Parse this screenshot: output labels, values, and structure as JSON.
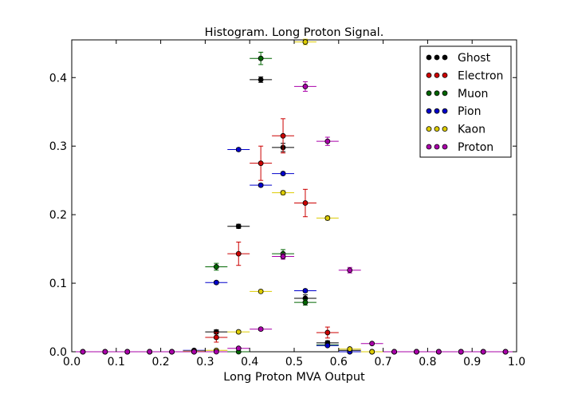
{
  "chart_data": {
    "type": "scatter",
    "title": "Histogram. Long Proton Signal.",
    "xlabel": "Long Proton MVA Output",
    "ylabel": "",
    "xlim": [
      0.0,
      1.0
    ],
    "ylim": [
      0.0,
      0.455
    ],
    "grid": false,
    "legend_position": "top-right",
    "x_ticks": [
      "0.0",
      "0.1",
      "0.2",
      "0.3",
      "0.4",
      "0.5",
      "0.6",
      "0.7",
      "0.8",
      "0.9",
      "1.0"
    ],
    "y_ticks": [
      "0.0",
      "0.1",
      "0.2",
      "0.3",
      "0.4"
    ],
    "x_bins": [
      0.025,
      0.075,
      0.125,
      0.175,
      0.225,
      0.275,
      0.325,
      0.375,
      0.425,
      0.475,
      0.525,
      0.575,
      0.625,
      0.675,
      0.725,
      0.775,
      0.825,
      0.875,
      0.925,
      0.975
    ],
    "series": [
      {
        "name": "Ghost",
        "color": "#000000",
        "values": [
          0,
          0,
          0,
          0,
          0,
          0,
          0.029,
          0.183,
          0.397,
          0.298,
          0.078,
          0.013,
          0.002,
          0,
          0,
          0,
          0,
          0,
          0,
          0
        ],
        "errors": [
          0,
          0,
          0,
          0,
          0,
          0,
          0.003,
          0.003,
          0.004,
          0.006,
          0.005,
          0.003,
          0.001,
          0,
          0,
          0,
          0,
          0,
          0,
          0
        ]
      },
      {
        "name": "Electron",
        "color": "#cc0000",
        "values": [
          0,
          0,
          0,
          0,
          0,
          0,
          0.021,
          0.143,
          0.275,
          0.315,
          0.217,
          0.028,
          0,
          0,
          0,
          0,
          0,
          0,
          0,
          0
        ],
        "errors": [
          0,
          0,
          0,
          0,
          0,
          0,
          0.007,
          0.017,
          0.025,
          0.025,
          0.02,
          0.008,
          0,
          0,
          0,
          0,
          0,
          0,
          0,
          0
        ]
      },
      {
        "name": "Muon",
        "color": "#006600",
        "values": [
          0,
          0,
          0,
          0,
          0,
          0,
          0.124,
          0,
          0.428,
          0.143,
          0.072,
          0.01,
          0,
          0,
          0,
          0,
          0,
          0,
          0,
          0
        ],
        "errors": [
          0,
          0,
          0,
          0,
          0,
          0,
          0.005,
          0,
          0.009,
          0.006,
          0.004,
          0.002,
          0,
          0,
          0,
          0,
          0,
          0,
          0,
          0
        ]
      },
      {
        "name": "Pion",
        "color": "#0000cc",
        "values": [
          0,
          0,
          0,
          0,
          0,
          0.002,
          0.101,
          0.295,
          0.243,
          0.26,
          0.089,
          0.009,
          0,
          0,
          0,
          0,
          0,
          0,
          0,
          0
        ],
        "errors": [
          0,
          0,
          0,
          0,
          0,
          0.001,
          0.002,
          0.002,
          0.002,
          0.002,
          0.002,
          0.001,
          0,
          0,
          0,
          0,
          0,
          0,
          0,
          0
        ]
      },
      {
        "name": "Kaon",
        "color": "#ddcc00",
        "values": [
          0,
          0,
          0,
          0,
          0,
          0.001,
          0.002,
          0.029,
          0.088,
          0.232,
          0.452,
          0.195,
          0.004,
          0,
          0,
          0,
          0,
          0,
          0,
          0
        ],
        "errors": [
          0,
          0,
          0,
          0,
          0,
          0,
          0.001,
          0.002,
          0.002,
          0.003,
          0.004,
          0.003,
          0.001,
          0,
          0,
          0,
          0,
          0,
          0,
          0
        ]
      },
      {
        "name": "Proton",
        "color": "#aa00aa",
        "values": [
          0,
          0,
          0,
          0,
          0,
          0,
          0,
          0.005,
          0.033,
          0.139,
          0.387,
          0.307,
          0.119,
          0.012,
          0,
          0,
          0,
          0,
          0,
          0
        ],
        "errors": [
          0,
          0,
          0,
          0,
          0,
          0,
          0,
          0.001,
          0.002,
          0.004,
          0.007,
          0.006,
          0.004,
          0.001,
          0,
          0,
          0,
          0,
          0,
          0
        ]
      }
    ]
  }
}
